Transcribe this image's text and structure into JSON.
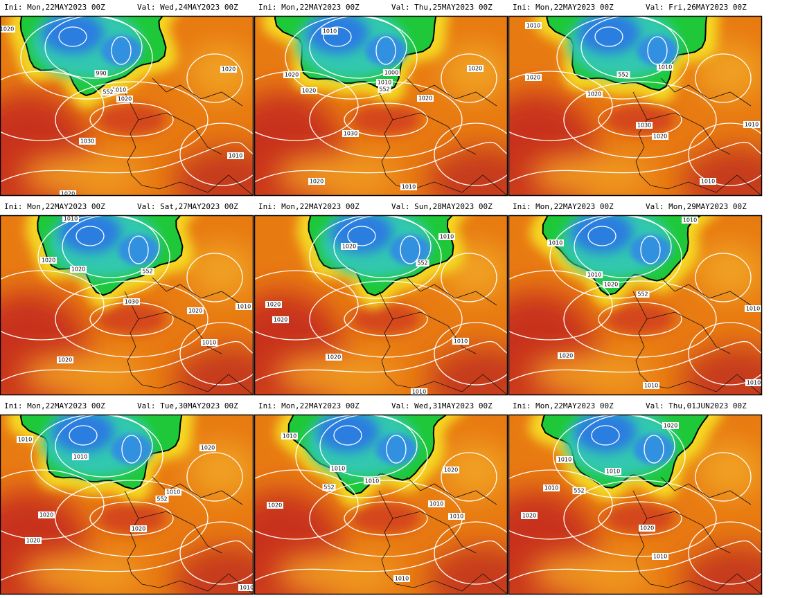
{
  "panels": [
    {
      "ini": "Ini:  Mon,22MAY2023 00Z",
      "val": "Val:  Wed,24MAY2023 00Z",
      "labels": [
        "1020",
        "990",
        "1010",
        "1020",
        "552",
        "1030",
        "1010",
        "1020",
        "1020"
      ]
    },
    {
      "ini": "Ini:  Mon,22MAY2023 00Z",
      "val": "Val:  Thu,25MAY2023 00Z",
      "labels": [
        "1010",
        "1020",
        "1000",
        "1010",
        "552",
        "1020",
        "1030",
        "1020",
        "1010",
        "1020",
        "1020"
      ]
    },
    {
      "ini": "Ini:  Mon,22MAY2023 00Z",
      "val": "Val:  Fri,26MAY2023 00Z",
      "labels": [
        "1010",
        "1020",
        "552",
        "1010",
        "1020",
        "1030",
        "1020",
        "1010",
        "1010"
      ]
    },
    {
      "ini": "Ini:  Mon,22MAY2023 00Z",
      "val": "Val:  Sat,27MAY2023 00Z",
      "labels": [
        "1010",
        "1020",
        "1020",
        "552",
        "1030",
        "1020",
        "1010",
        "1020",
        "1010"
      ]
    },
    {
      "ini": "Ini:  Mon,22MAY2023 00Z",
      "val": "Val:  Sun,28MAY2023 00Z",
      "labels": [
        "1010",
        "1020",
        "552",
        "1020",
        "1020",
        "1010",
        "1020",
        "1010"
      ]
    },
    {
      "ini": "Ini:  Mon,22MAY2023 00Z",
      "val": "Val:  Mon,29MAY2023 00Z",
      "labels": [
        "1010",
        "1010",
        "1010",
        "1020",
        "552",
        "1010",
        "1020",
        "1010",
        "1010"
      ]
    },
    {
      "ini": "Ini:  Mon,22MAY2023 00Z",
      "val": "Val:  Tue,30MAY2023 00Z",
      "labels": [
        "1010",
        "1010",
        "1020",
        "1010",
        "552",
        "1020",
        "1020",
        "1020",
        "1010"
      ]
    },
    {
      "ini": "Ini:  Mon,22MAY2023 00Z",
      "val": "Val:  Wed,31MAY2023 00Z",
      "labels": [
        "1010",
        "1010",
        "1010",
        "552",
        "1020",
        "1010",
        "1010",
        "1020",
        "1010"
      ]
    },
    {
      "ini": "Ini:  Mon,22MAY2023 00Z",
      "val": "Val:  Thu,01JUN2023 00Z",
      "labels": [
        "1020",
        "1010",
        "1010",
        "1010",
        "552",
        "1020",
        "1020",
        "1010"
      ]
    }
  ]
}
